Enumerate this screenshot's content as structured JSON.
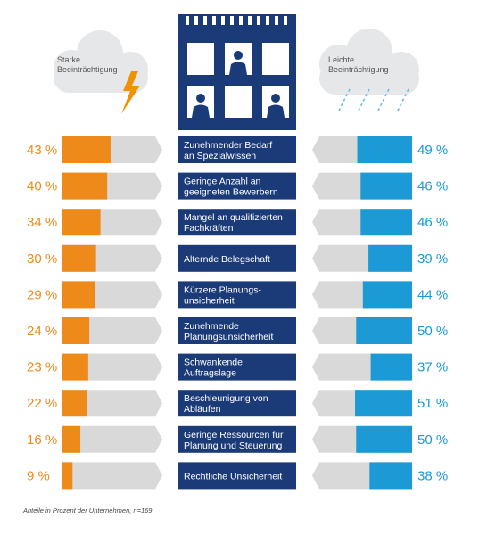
{
  "chart_data": {
    "type": "bar",
    "legend": {
      "left": [
        "Starke",
        "Beeinträchtigung"
      ],
      "right": [
        "Leichte",
        "Beeinträchtigung"
      ]
    },
    "categories": [
      [
        "Zunehmender Bedarf",
        "an Spezialwissen"
      ],
      [
        "Geringe Anzahl an",
        "geeigneten Bewerbern"
      ],
      [
        "Mangel an qualifizierten",
        "Fachkräften"
      ],
      [
        "Alternde Belegschaft"
      ],
      [
        "Kürzere Planungs-",
        "unsicherheit"
      ],
      [
        "Zunehmende",
        "Planungsunsicherheit"
      ],
      [
        "Schwankende",
        "Auftragslage"
      ],
      [
        "Beschleunigung von",
        "Abläufen"
      ],
      [
        "Geringe Ressourcen für",
        "Planung und Steuerung"
      ],
      [
        "Rechtliche Unsicherheit"
      ]
    ],
    "series": [
      {
        "name": "Starke Beeinträchtigung",
        "color": "#ee8a1a",
        "values": [
          43,
          40,
          34,
          30,
          29,
          24,
          23,
          22,
          16,
          9
        ]
      },
      {
        "name": "Leichte Beeinträchtigung",
        "color": "#1b9ad6",
        "values": [
          49,
          46,
          46,
          39,
          44,
          50,
          37,
          51,
          50,
          38
        ]
      }
    ],
    "value_labels": {
      "left": [
        "43 %",
        "40 %",
        "34 %",
        "30 %",
        "29 %",
        "24 %",
        "23 %",
        "22 %",
        "16 %",
        "9 %"
      ],
      "right": [
        "49 %",
        "46 %",
        "46 %",
        "39 %",
        "44 %",
        "50 %",
        "37 %",
        "51 %",
        "50 %",
        "38 %"
      ]
    },
    "unit": "%",
    "footnote": "Anteile in Prozent der Unternehmen, n=169"
  },
  "colors": {
    "navy": "#1b3a78",
    "track": "#d9d9d9",
    "orange": "#ee8a1a",
    "blue": "#1b9ad6",
    "cloud": "#e6e7e8"
  },
  "icons": {
    "left_cloud": "storm-cloud-lightning-icon",
    "right_cloud": "rain-cloud-icon",
    "building": "office-building-icon"
  }
}
